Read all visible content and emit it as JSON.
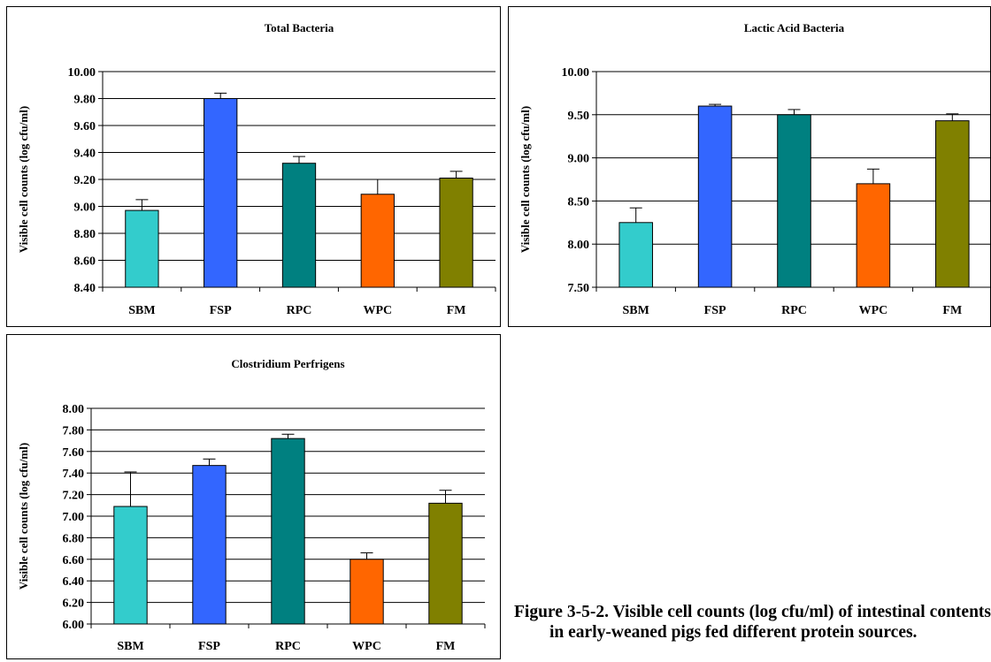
{
  "chart_data": [
    {
      "type": "bar",
      "title": "Total Bacteria",
      "ylabel": "Visible cell counts (log cfu/ml)",
      "categories": [
        "SBM",
        "FSP",
        "RPC",
        "WPC",
        "FM"
      ],
      "values": [
        8.97,
        9.8,
        9.32,
        9.09,
        9.21
      ],
      "errors": [
        0.08,
        0.04,
        0.05,
        0.11,
        0.05
      ],
      "colors": [
        "#33cccc",
        "#3366ff",
        "#008080",
        "#ff6600",
        "#808000"
      ],
      "ylim": [
        8.4,
        10.0
      ],
      "yticks": [
        "8.40",
        "8.60",
        "8.80",
        "9.00",
        "9.20",
        "9.40",
        "9.60",
        "9.80",
        "10.00"
      ],
      "grid": true
    },
    {
      "type": "bar",
      "title": "Lactic Acid Bacteria",
      "ylabel": "Visible cell counts (log cfu/ml)",
      "categories": [
        "SBM",
        "FSP",
        "RPC",
        "WPC",
        "FM"
      ],
      "values": [
        8.25,
        9.6,
        9.5,
        8.7,
        9.43
      ],
      "errors": [
        0.17,
        0.02,
        0.06,
        0.17,
        0.08
      ],
      "colors": [
        "#33cccc",
        "#3366ff",
        "#008080",
        "#ff6600",
        "#808000"
      ],
      "ylim": [
        7.5,
        10.0
      ],
      "yticks": [
        "7.50",
        "8.00",
        "8.50",
        "9.00",
        "9.50",
        "10.00"
      ],
      "grid": true
    },
    {
      "type": "bar",
      "title": "Clostridium Perfrigens",
      "ylabel": "Visible cell counts (log cfu/ml)",
      "categories": [
        "SBM",
        "FSP",
        "RPC",
        "WPC",
        "FM"
      ],
      "values": [
        7.09,
        7.47,
        7.72,
        6.6,
        7.12
      ],
      "errors": [
        0.32,
        0.06,
        0.04,
        0.06,
        0.12
      ],
      "colors": [
        "#33cccc",
        "#3366ff",
        "#008080",
        "#ff6600",
        "#808000"
      ],
      "ylim": [
        6.0,
        8.0
      ],
      "yticks": [
        "6.00",
        "6.20",
        "6.40",
        "6.60",
        "6.80",
        "7.00",
        "7.20",
        "7.40",
        "7.60",
        "7.80",
        "8.00"
      ],
      "grid": true
    }
  ],
  "caption": "Figure 3-5-2. Visible cell counts (log cfu/ml) of intestinal contents in early-weaned pigs fed different protein sources."
}
